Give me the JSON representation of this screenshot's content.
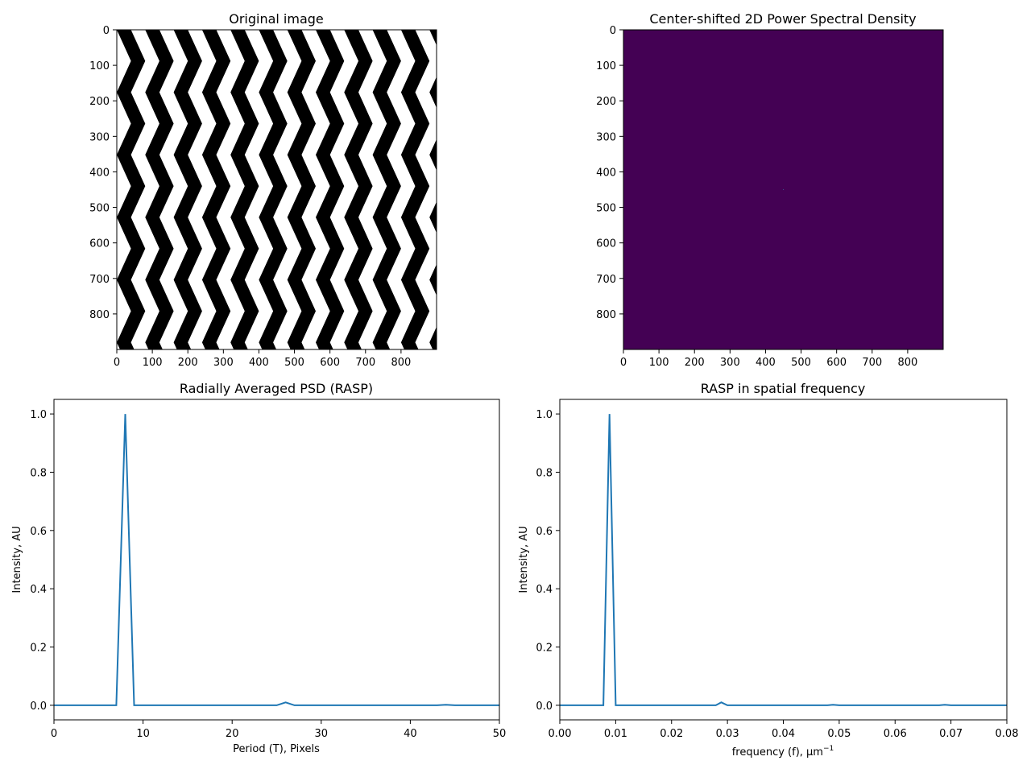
{
  "chart_data": [
    {
      "type": "image",
      "title": "Original image",
      "xticks": [
        "0",
        "100",
        "200",
        "300",
        "400",
        "500",
        "600",
        "700",
        "800"
      ],
      "yticks": [
        "0",
        "100",
        "200",
        "300",
        "400",
        "500",
        "600",
        "700",
        "800"
      ],
      "extent": [
        0,
        900
      ],
      "pattern": "black and white vertical chevron (zigzag) stripes",
      "colors": {
        "dark": "#000000",
        "light": "#ffffff"
      }
    },
    {
      "type": "heatmap",
      "title": "Center-shifted 2D Power Spectral Density",
      "xticks": [
        "0",
        "100",
        "200",
        "300",
        "400",
        "500",
        "600",
        "700",
        "800"
      ],
      "yticks": [
        "0",
        "100",
        "200",
        "300",
        "400",
        "500",
        "600",
        "700",
        "800"
      ],
      "extent": [
        0,
        900
      ],
      "fill_color": "#440154",
      "peak_color": "#3b528b"
    },
    {
      "type": "line",
      "title": "Radially Averaged PSD (RASP)",
      "xlabel": "Period (T), Pixels",
      "ylabel": "Intensity, AU",
      "xlim": [
        0,
        50
      ],
      "ylim": [
        -0.05,
        1.05
      ],
      "xticks": [
        "0",
        "10",
        "20",
        "30",
        "40",
        "50"
      ],
      "yticks": [
        "0.0",
        "0.2",
        "0.4",
        "0.6",
        "0.8",
        "1.0"
      ],
      "line_color": "#1f77b4",
      "series": [
        {
          "x": [
            0,
            7,
            8,
            9,
            25,
            26,
            27,
            43,
            44,
            45,
            50
          ],
          "y": [
            0,
            0,
            1.0,
            0,
            0,
            0.01,
            0,
            0,
            0.002,
            0,
            0
          ]
        }
      ]
    },
    {
      "type": "line",
      "title": "RASP in spatial frequency",
      "xlabel": "frequency (f), μm",
      "xlabel_sup": "−1",
      "ylabel": "Intensity, AU",
      "xlim": [
        0,
        0.08
      ],
      "ylim": [
        -0.05,
        1.05
      ],
      "xticks": [
        "0.00",
        "0.01",
        "0.02",
        "0.03",
        "0.04",
        "0.05",
        "0.06",
        "0.07",
        "0.08"
      ],
      "yticks": [
        "0.0",
        "0.2",
        "0.4",
        "0.6",
        "0.8",
        "1.0"
      ],
      "line_color": "#1f77b4",
      "series": [
        {
          "x": [
            0,
            0.0078,
            0.0089,
            0.01,
            0.0279,
            0.0289,
            0.03,
            0.0479,
            0.0489,
            0.05,
            0.0679,
            0.0689,
            0.07,
            0.08
          ],
          "y": [
            0,
            0,
            1.0,
            0,
            0,
            0.01,
            0,
            0,
            0.002,
            0,
            0,
            0.002,
            0,
            0
          ]
        }
      ]
    }
  ]
}
